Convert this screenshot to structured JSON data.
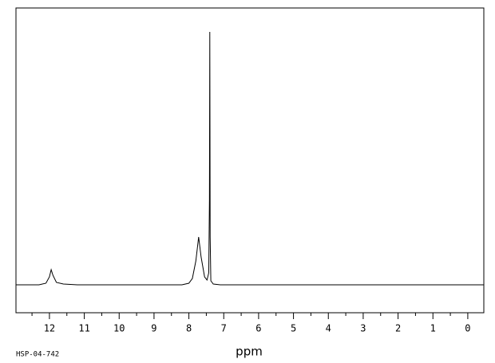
{
  "chart_data": {
    "type": "line",
    "x_label": "ppm",
    "footnote": "HSP-04-742",
    "x": [
      12.96,
      12.3,
      12.1,
      12.0,
      11.95,
      11.9,
      11.8,
      11.6,
      11.2,
      9.0,
      8.2,
      8.0,
      7.9,
      7.8,
      7.72,
      7.65,
      7.55,
      7.48,
      7.43,
      7.41,
      7.4,
      7.39,
      7.37,
      7.3,
      7.1,
      0.0,
      -0.46
    ],
    "series": [
      {
        "color": "#000000",
        "values": [
          0,
          0,
          2,
          10,
          19,
          12,
          3,
          1,
          0,
          0,
          0,
          2,
          8,
          30,
          60,
          35,
          10,
          6,
          15,
          107,
          317,
          60,
          5,
          1,
          0,
          0,
          0
        ]
      }
    ],
    "xlim": [
      12.96,
      -0.46
    ],
    "ylim": [
      -35,
      347
    ],
    "xticks": [
      12,
      11,
      10,
      9,
      8,
      7,
      6,
      5,
      4,
      3,
      2,
      1,
      0
    ],
    "xminorticks": [
      12.5,
      11.5,
      10.5,
      9.5,
      8.5,
      7.5,
      6.5,
      5.5,
      4.5,
      3.5,
      2.5,
      1.5,
      0.5
    ]
  }
}
